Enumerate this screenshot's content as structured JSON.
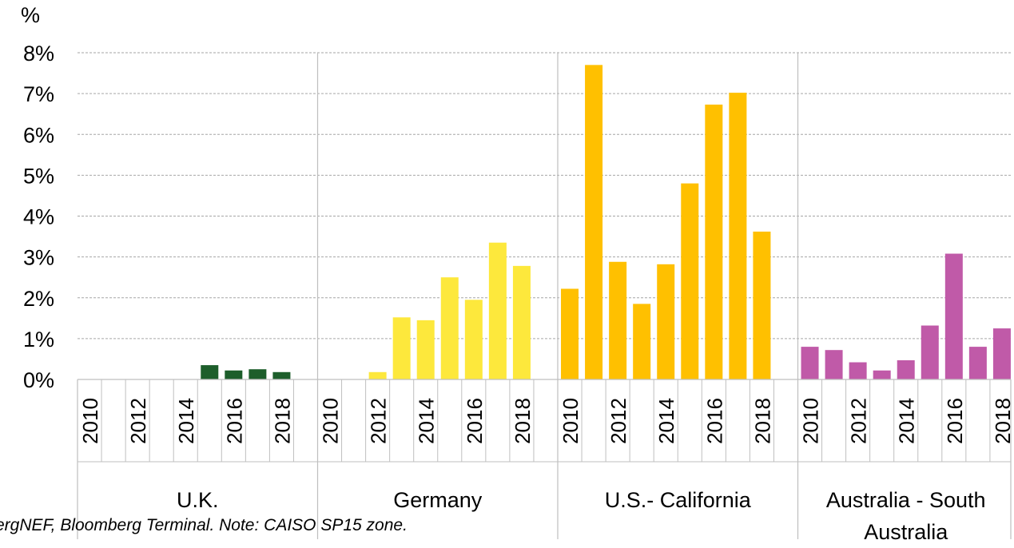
{
  "chart_data": {
    "type": "bar",
    "y_label": "%",
    "ylim": [
      0,
      8
    ],
    "yticks": [
      {
        "value": 0,
        "label": "0%"
      },
      {
        "value": 1,
        "label": "1%"
      },
      {
        "value": 2,
        "label": "2%"
      },
      {
        "value": 3,
        "label": "3%"
      },
      {
        "value": 4,
        "label": "4%"
      },
      {
        "value": 5,
        "label": "5%"
      },
      {
        "value": 6,
        "label": "6%"
      },
      {
        "value": 7,
        "label": "7%"
      },
      {
        "value": 8,
        "label": "8%"
      }
    ],
    "grid": true,
    "groups": [
      {
        "name": "U.K.",
        "color": "#1d5e2b",
        "categories": [
          "2010",
          null,
          "2012",
          null,
          "2014",
          null,
          "2016",
          null,
          "2018",
          null
        ],
        "values": [
          0,
          0,
          0,
          0,
          0,
          0.35,
          0.22,
          0.25,
          0.18,
          null
        ]
      },
      {
        "name": "Germany",
        "color": "#fde83c",
        "categories": [
          "2010",
          null,
          "2012",
          null,
          "2014",
          null,
          "2016",
          null,
          "2018",
          null
        ],
        "values": [
          0,
          0,
          0.18,
          1.52,
          1.45,
          2.5,
          1.95,
          3.35,
          2.78,
          null
        ]
      },
      {
        "name": "U.S.- California",
        "color": "#ffc000",
        "categories": [
          "2010",
          null,
          "2012",
          null,
          "2014",
          null,
          "2016",
          null,
          "2018",
          null
        ],
        "values": [
          2.22,
          7.7,
          2.88,
          1.85,
          2.82,
          4.8,
          6.73,
          7.02,
          3.62,
          null
        ]
      },
      {
        "name": "Australia - South Australia",
        "color": "#c05aa8",
        "categories": [
          "2010",
          null,
          "2012",
          null,
          "2014",
          null,
          "2016",
          null,
          "2018"
        ],
        "values": [
          0.8,
          0.72,
          0.42,
          0.22,
          0.47,
          1.32,
          3.08,
          0.8,
          1.25
        ]
      }
    ],
    "footnote": "ergNEF, Bloomberg Terminal. Note: CAISO SP15 zone."
  }
}
